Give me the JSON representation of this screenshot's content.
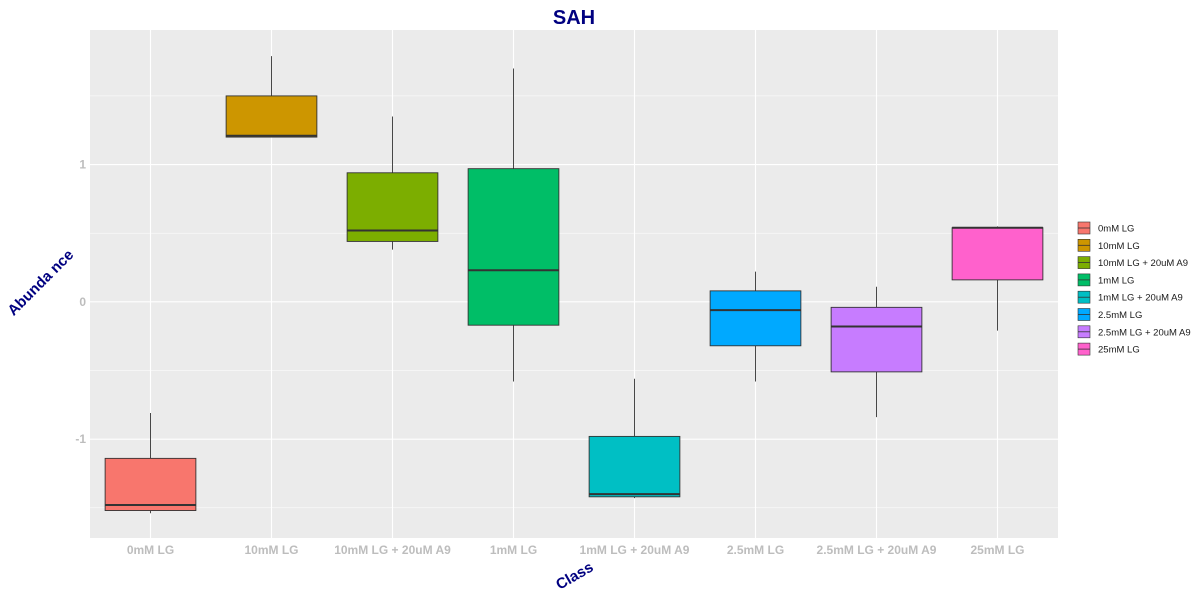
{
  "chart_data": {
    "type": "boxplot",
    "title": "SAH",
    "xlabel": "Class",
    "ylabel": "Abundance",
    "ylabel_display": "Abunda nce",
    "categories": [
      "0mM LG",
      "10mM LG",
      "10mM LG + 20uM A9",
      "1mM LG",
      "1mM LG + 20uM A9",
      "2.5mM LG",
      "2.5mM LG + 20uM A9",
      "25mM LG"
    ],
    "series": [
      {
        "name": "0mM LG",
        "color": "#F8766D",
        "min": -1.54,
        "q1": -1.52,
        "median": -1.48,
        "q3": -1.14,
        "max": -0.81
      },
      {
        "name": "10mM LG",
        "color": "#CD9600",
        "min": 1.2,
        "q1": 1.2,
        "median": 1.21,
        "q3": 1.5,
        "max": 1.79
      },
      {
        "name": "10mM LG + 20uM A9",
        "color": "#7CAE00",
        "min": 0.38,
        "q1": 0.44,
        "median": 0.52,
        "q3": 0.94,
        "max": 1.35
      },
      {
        "name": "1mM LG",
        "color": "#00BE67",
        "min": -0.58,
        "q1": -0.17,
        "median": 0.23,
        "q3": 0.97,
        "max": 1.7
      },
      {
        "name": "1mM LG + 20uM A9",
        "color": "#00BFC4",
        "min": -1.43,
        "q1": -1.42,
        "median": -1.4,
        "q3": -0.98,
        "max": -0.56
      },
      {
        "name": "2.5mM LG",
        "color": "#00A9FF",
        "min": -0.58,
        "q1": -0.32,
        "median": -0.06,
        "q3": 0.08,
        "max": 0.22
      },
      {
        "name": "2.5mM LG + 20uM A9",
        "color": "#C77CFF",
        "min": -0.84,
        "q1": -0.51,
        "median": -0.18,
        "q3": -0.04,
        "max": 0.11
      },
      {
        "name": "25mM LG",
        "color": "#FF61CC",
        "min": -0.21,
        "q1": 0.16,
        "median": 0.54,
        "q3": 0.54,
        "max": 0.55
      }
    ],
    "ylim": [
      -1.72,
      1.98
    ],
    "yticks": [
      -1,
      0,
      1
    ],
    "ytick_labels": [
      "-1",
      "0",
      "1"
    ],
    "grid": true,
    "legend_position": "right",
    "colors": {
      "panel_background": "#EBEBEB",
      "grid_line": "#FFFFFF",
      "title": "#000080",
      "axis_title": "#000080",
      "tick_label": "#BDBDBD",
      "box_outline": "#333333"
    }
  }
}
